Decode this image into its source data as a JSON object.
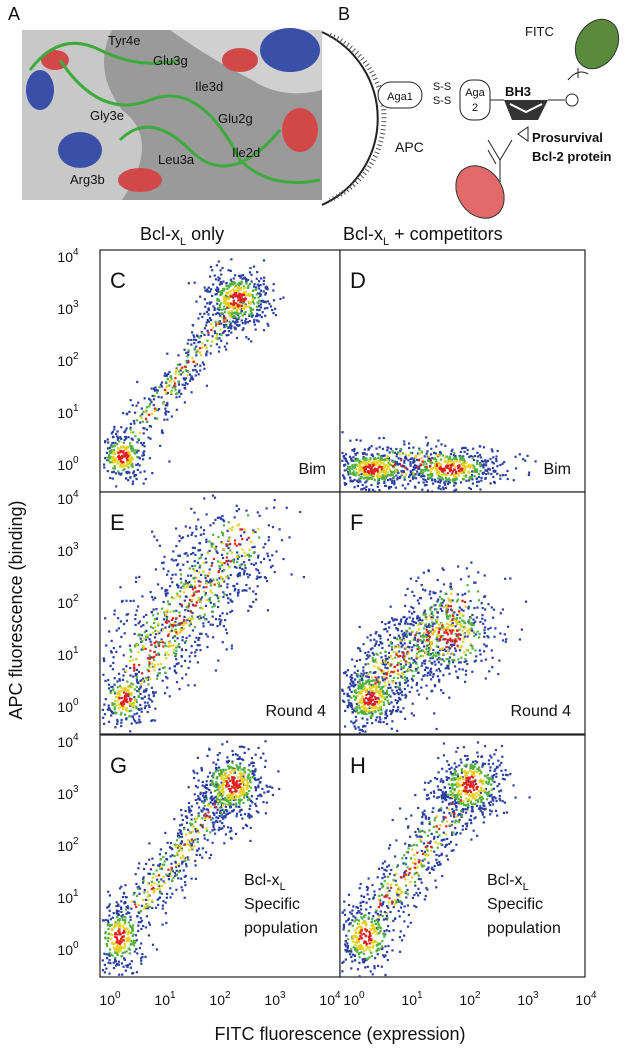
{
  "panel_a": {
    "label": "A",
    "residues": [
      "Tyr4e",
      "Glu3g",
      "Ile3d",
      "Gly3e",
      "Glu2g",
      "Ile2d",
      "Leu3a",
      "Arg3b"
    ]
  },
  "panel_b": {
    "label": "B",
    "fitc": "FITC",
    "aga1": "Aga1",
    "ss_top": "S-S",
    "ss_bottom": "S-S",
    "aga2_top": "Aga",
    "aga2_bottom": "2",
    "bh3": "BH3",
    "apc": "APC",
    "protein_line1": "Prosurvival",
    "protein_line2": "Bcl-2 protein"
  },
  "columns": [
    {
      "base": "Bcl-x",
      "sub": "L",
      "rest": " only"
    },
    {
      "base": "Bcl-x",
      "sub": "L",
      "rest": " + competitors"
    }
  ],
  "panels": [
    {
      "label": "C",
      "annotation": [
        "Bim"
      ]
    },
    {
      "label": "D",
      "annotation": [
        "Bim"
      ]
    },
    {
      "label": "E",
      "annotation": [
        "Round 4"
      ]
    },
    {
      "label": "F",
      "annotation": [
        "Round 4"
      ]
    },
    {
      "label": "G",
      "annotation": [
        "Bcl-x",
        "Specific",
        "population"
      ],
      "annotation_sub": "L"
    },
    {
      "label": "H",
      "annotation": [
        "Bcl-x",
        "Specific",
        "population"
      ],
      "annotation_sub": "L"
    }
  ],
  "y_ticks": [
    {
      "base": "10",
      "exp": "0"
    },
    {
      "base": "10",
      "exp": "1"
    },
    {
      "base": "10",
      "exp": "2"
    },
    {
      "base": "10",
      "exp": "3"
    },
    {
      "base": "10",
      "exp": "4"
    }
  ],
  "x_ticks": [
    {
      "base": "10",
      "exp": "0"
    },
    {
      "base": "10",
      "exp": "1"
    },
    {
      "base": "10",
      "exp": "2"
    },
    {
      "base": "10",
      "exp": "3"
    },
    {
      "base": "10",
      "exp": "4"
    }
  ],
  "y_axis_label": "APC fluorescence (binding)",
  "x_axis_label": "FITC fluorescence (expression)"
}
